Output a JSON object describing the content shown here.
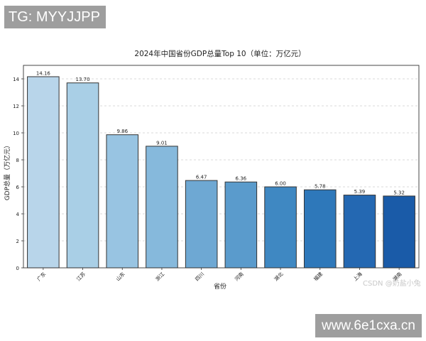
{
  "watermarks": {
    "top_left": "TG: MYYJJPP",
    "bottom_right": "www.6e1cxa.cn",
    "csdn": "CSDN @奶盐小兔"
  },
  "chart_data": {
    "type": "bar",
    "title": "2024年中国省份GDP总量Top 10（单位：万亿元）",
    "xlabel": "省份",
    "ylabel": "GDP总量（万亿元）",
    "categories": [
      "广东",
      "江苏",
      "山东",
      "浙江",
      "四川",
      "河南",
      "湖北",
      "福建",
      "上海",
      "湖南"
    ],
    "values": [
      14.16,
      13.7,
      9.86,
      9.01,
      6.47,
      6.36,
      6.0,
      5.78,
      5.39,
      5.32
    ],
    "value_labels": [
      "14.16",
      "13.70",
      "9.86",
      "9.01",
      "6.47",
      "6.36",
      "6.00",
      "5.78",
      "5.39",
      "5.32"
    ],
    "ylim": [
      0,
      15
    ],
    "yticks": [
      0,
      2,
      4,
      6,
      8,
      10,
      12,
      14
    ],
    "grid": "horizontal-dashed",
    "legend": "none",
    "colormap": "Blues",
    "bar_colors": [
      "#b8d5ea",
      "#a9cfe6",
      "#98c4e2",
      "#86b9dc",
      "#6ea8d3",
      "#5a9bcc",
      "#3f88c2",
      "#2e78ba",
      "#2468b2",
      "#1a5ba8"
    ],
    "bar_edge_color": "#333333"
  }
}
